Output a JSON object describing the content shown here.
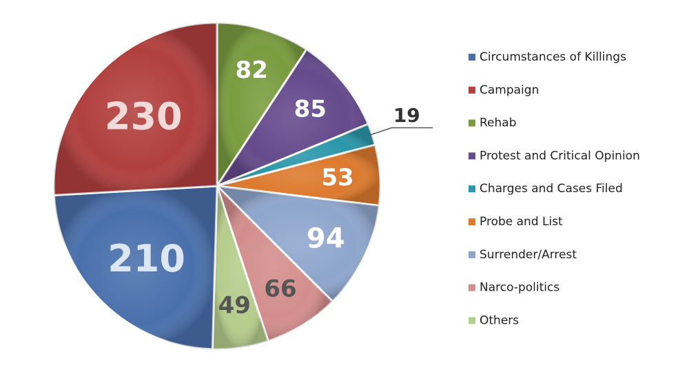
{
  "chart_data": {
    "type": "pie",
    "title": "",
    "legend_position": "right",
    "slices": [
      {
        "label": "Rehab",
        "value": 82,
        "color": "#7a9c3f",
        "label_color": "#ffffff"
      },
      {
        "label": "Protest and Critical Opinion",
        "value": 85,
        "color": "#654a8c",
        "label_color": "#ffffff"
      },
      {
        "label": "Charges and Cases Filed",
        "value": 19,
        "color": "#2a97aa",
        "label_color": "#333333"
      },
      {
        "label": "Probe and List",
        "value": 53,
        "color": "#dd7a2e",
        "label_color": "#ffffff"
      },
      {
        "label": "Surrender/Arrest",
        "value": 94,
        "color": "#8fa6cc",
        "label_color": "#ffffff"
      },
      {
        "label": "Narco-politics",
        "value": 66,
        "color": "#d38e8c",
        "label_color": "#555555"
      },
      {
        "label": "Others",
        "value": 49,
        "color": "#b6cd8d",
        "label_color": "#555555"
      },
      {
        "label": "Circumstances of Killings",
        "value": 210,
        "color": "#4a70ac",
        "label_color": "#dde6f3"
      },
      {
        "label": "Campaign",
        "value": 230,
        "color": "#b1403e",
        "label_color": "#f2dada"
      }
    ],
    "legend_order": [
      "Circumstances of Killings",
      "Campaign",
      "Rehab",
      "Protest and Critical Opinion",
      "Charges and Cases Filed",
      "Probe and List",
      "Surrender/Arrest",
      "Narco-politics",
      "Others"
    ]
  }
}
